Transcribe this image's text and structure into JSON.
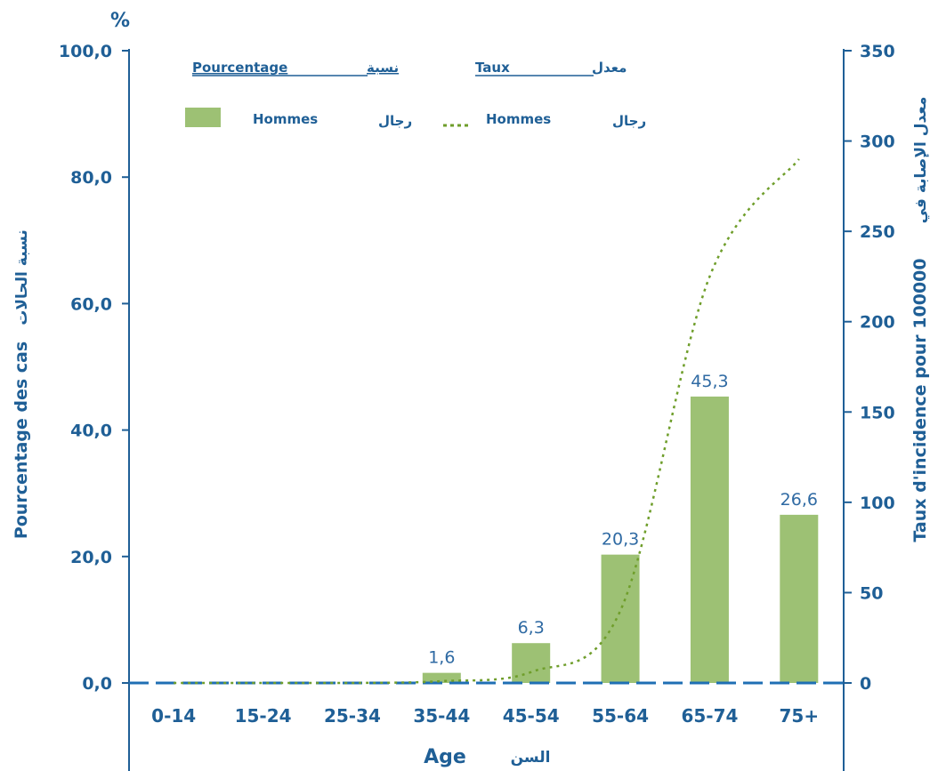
{
  "chart_data": {
    "type": "bar",
    "categories": [
      "0-14",
      "15-24",
      "25-34",
      "35-44",
      "45-54",
      "55-64",
      "65-74",
      "75+"
    ],
    "series": [
      {
        "name": "Hommes",
        "kind": "bar",
        "axis": "left",
        "values": [
          0,
          0,
          0,
          1.6,
          6.3,
          20.3,
          45.3,
          26.6
        ],
        "labels": [
          "",
          "",
          "",
          "1,6",
          "6,3",
          "20,3",
          "45,3",
          "26,6"
        ]
      },
      {
        "name": "Hommes",
        "kind": "line",
        "style": "dotted",
        "axis": "right",
        "values": [
          0,
          0,
          0,
          1,
          6,
          40,
          225,
          290
        ]
      }
    ],
    "y_left": {
      "unit": "%",
      "label": "Pourcentage des cas",
      "label_ar": "نسبة الحالات",
      "ylim": [
        0,
        100
      ],
      "ticks": [
        "0,0",
        "20,0",
        "40,0",
        "60,0",
        "80,0",
        "100,0"
      ]
    },
    "y_right": {
      "label": "Taux d'incidence pour 100000",
      "label_ar": "معدل الإصابة في",
      "ylim": [
        0,
        350
      ],
      "ticks": [
        "0",
        "50",
        "100",
        "150",
        "200",
        "250",
        "300",
        "350"
      ]
    },
    "xlabel": "Age",
    "xlabel_ar": "السن",
    "legend": {
      "placement": "top",
      "bar_heading": "Pourcentage",
      "bar_heading_ar": "نسبة",
      "line_heading": "Taux",
      "line_heading_ar": "معدل",
      "bar_label": "Hommes",
      "bar_label_ar": "رجال",
      "line_label": "Hommes",
      "line_label_ar": "رجال"
    },
    "colors": {
      "bar": "#9dc174",
      "line": "#6f9e2b",
      "axis": "#1f5f96",
      "baseline": "#1f6fb4"
    },
    "grid": false
  }
}
